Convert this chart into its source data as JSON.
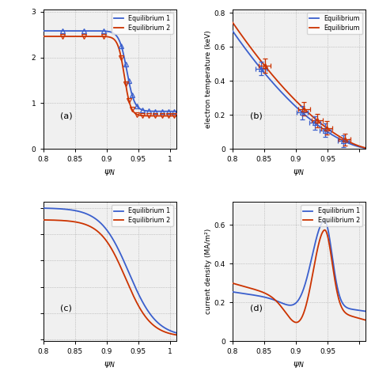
{
  "blue_color": "#3A5FCD",
  "red_color": "#CC3300",
  "panel_labels": [
    "(a)",
    "(b)",
    "(c)",
    "(d)"
  ],
  "legend_labels": [
    "Equilibrium 1",
    "Equilibrium 2"
  ],
  "panel_b_ylabel": "electron temperature (keV)",
  "panel_d_ylabel": "current density (MA/m²)",
  "panel_a_ylim": [
    0,
    3.05
  ],
  "panel_a_yticks": [
    0,
    1,
    2,
    3
  ],
  "panel_b_ylim": [
    0,
    0.82
  ],
  "panel_b_yticks": [
    0,
    0.2,
    0.4,
    0.6,
    0.8
  ],
  "panel_d_ylim": [
    0,
    0.72
  ],
  "panel_d_yticks": [
    0,
    0.2,
    0.4,
    0.6
  ],
  "bg_color": "#F0F0F0"
}
